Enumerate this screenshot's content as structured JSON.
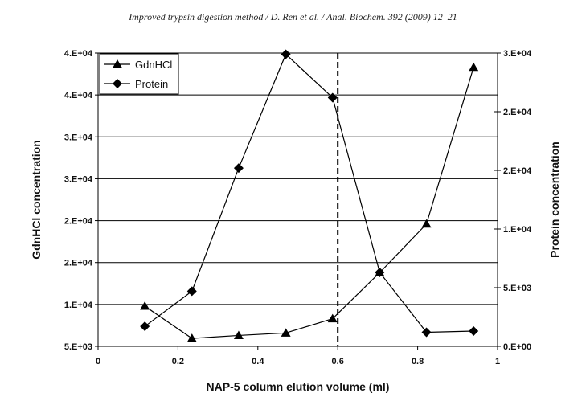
{
  "header": "Improved trypsin digestion method / D. Ren et al. / Anal. Biochem. 392 (2009) 12–21",
  "chart_data": {
    "type": "line",
    "title": "",
    "xlabel": "NAP-5 column elution volume (ml)",
    "ylabel_left": "GdnHCl concentration",
    "ylabel_right": "Protein concentration",
    "xlim": [
      0,
      1
    ],
    "x_ticks": [
      "0",
      "0.2",
      "0.4",
      "0.6",
      "0.8",
      "1"
    ],
    "y_left_ticks": [
      "5.E+03",
      "1.E+04",
      "2.E+04",
      "2.E+04",
      "3.E+04",
      "3.E+04",
      "4.E+04",
      "4.E+04"
    ],
    "y_left_range": [
      5000,
      40000
    ],
    "y_right_ticks": [
      "0.E+00",
      "5.E+03",
      "1.E+04",
      "2.E+04",
      "2.E+04",
      "3.E+04"
    ],
    "y_right_range": [
      0,
      25000
    ],
    "grid": "horizontal",
    "vline": {
      "x": 0.6,
      "style": "dashed"
    },
    "legend_position": "top-left",
    "series": [
      {
        "name": "GdnHCl",
        "marker": "triangle",
        "axis": "left",
        "x": [
          0.117,
          0.235,
          0.352,
          0.47,
          0.587,
          0.705,
          0.822,
          0.94
        ],
        "values": [
          9800,
          5950,
          6300,
          6600,
          8300,
          13800,
          19600,
          38300
        ]
      },
      {
        "name": "Protein",
        "marker": "diamond",
        "axis": "right",
        "x": [
          0.117,
          0.235,
          0.352,
          0.47,
          0.587,
          0.705,
          0.822,
          0.94
        ],
        "values": [
          1700,
          4700,
          15200,
          24900,
          21200,
          6300,
          1200,
          1300
        ]
      }
    ]
  }
}
